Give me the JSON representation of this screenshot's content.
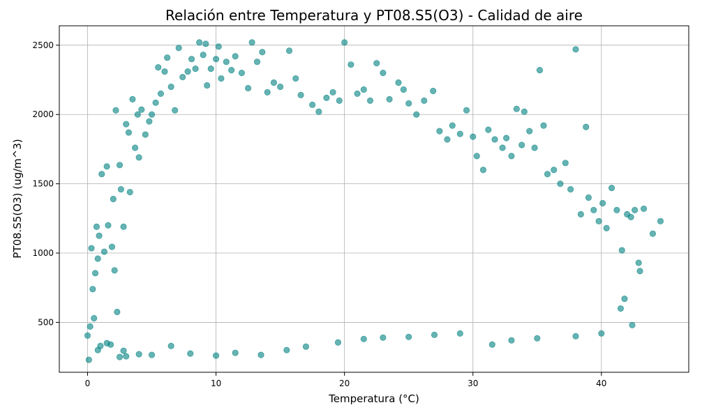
{
  "chart_data": {
    "type": "scatter",
    "title": "Relación entre Temperatura y PT08.S5(O3) - Calidad de aire",
    "xlabel": "Temperatura (°C)",
    "ylabel": "PT08.S5(O3) (ug/m^3)",
    "xlim": [
      -2.2,
      46.8
    ],
    "ylim": [
      140,
      2640
    ],
    "xticks": [
      0,
      10,
      20,
      30,
      40
    ],
    "yticks": [
      500,
      1000,
      1500,
      2000,
      2500
    ],
    "grid": true,
    "marker_color": "#008080",
    "marker_alpha": 0.6,
    "series": [
      {
        "points": [
          [
            0.0,
            405
          ],
          [
            0.1,
            230
          ],
          [
            0.2,
            470
          ],
          [
            0.3,
            1035
          ],
          [
            0.4,
            740
          ],
          [
            0.5,
            530
          ],
          [
            0.6,
            855
          ],
          [
            0.7,
            1190
          ],
          [
            0.8,
            960
          ],
          [
            0.9,
            1125
          ],
          [
            1.0,
            330
          ],
          [
            1.1,
            1570
          ],
          [
            1.3,
            1010
          ],
          [
            1.5,
            1625
          ],
          [
            1.6,
            1200
          ],
          [
            1.8,
            340
          ],
          [
            1.9,
            1045
          ],
          [
            2.0,
            1390
          ],
          [
            2.1,
            875
          ],
          [
            2.2,
            2030
          ],
          [
            2.3,
            575
          ],
          [
            2.5,
            1635
          ],
          [
            2.6,
            1460
          ],
          [
            2.8,
            1190
          ],
          [
            2.8,
            295
          ],
          [
            3.0,
            1930
          ],
          [
            3.2,
            1870
          ],
          [
            3.3,
            1440
          ],
          [
            3.5,
            2110
          ],
          [
            3.7,
            1760
          ],
          [
            3.9,
            2000
          ],
          [
            4.0,
            1690
          ],
          [
            4.2,
            2035
          ],
          [
            4.5,
            1855
          ],
          [
            4.8,
            1950
          ],
          [
            5.0,
            2000
          ],
          [
            5.3,
            2085
          ],
          [
            5.5,
            2340
          ],
          [
            5.7,
            2150
          ],
          [
            6.0,
            2310
          ],
          [
            6.2,
            2410
          ],
          [
            6.5,
            2200
          ],
          [
            6.8,
            2030
          ],
          [
            7.1,
            2480
          ],
          [
            7.4,
            2270
          ],
          [
            7.8,
            2310
          ],
          [
            8.1,
            2400
          ],
          [
            8.4,
            2330
          ],
          [
            8.7,
            2520
          ],
          [
            9.0,
            2430
          ],
          [
            9.2,
            2510
          ],
          [
            9.3,
            2210
          ],
          [
            9.6,
            2330
          ],
          [
            10.0,
            2400
          ],
          [
            10.2,
            2490
          ],
          [
            10.4,
            2260
          ],
          [
            10.8,
            2380
          ],
          [
            11.2,
            2320
          ],
          [
            11.5,
            2420
          ],
          [
            12.0,
            2300
          ],
          [
            12.5,
            2190
          ],
          [
            12.8,
            2520
          ],
          [
            13.2,
            2380
          ],
          [
            13.6,
            2450
          ],
          [
            14.0,
            2160
          ],
          [
            14.5,
            2230
          ],
          [
            15.0,
            2200
          ],
          [
            15.7,
            2460
          ],
          [
            16.2,
            2260
          ],
          [
            16.6,
            2140
          ],
          [
            17.5,
            2070
          ],
          [
            18.0,
            2020
          ],
          [
            18.6,
            2120
          ],
          [
            19.1,
            2160
          ],
          [
            19.6,
            2100
          ],
          [
            20.0,
            2520
          ],
          [
            20.5,
            2360
          ],
          [
            21.0,
            2150
          ],
          [
            21.5,
            2180
          ],
          [
            22.0,
            2100
          ],
          [
            22.5,
            2370
          ],
          [
            23.0,
            2300
          ],
          [
            23.5,
            2110
          ],
          [
            24.2,
            2230
          ],
          [
            24.6,
            2180
          ],
          [
            25.0,
            2080
          ],
          [
            25.6,
            2000
          ],
          [
            26.2,
            2100
          ],
          [
            26.9,
            2170
          ],
          [
            27.4,
            1880
          ],
          [
            28.0,
            1820
          ],
          [
            28.4,
            1920
          ],
          [
            29.0,
            1860
          ],
          [
            29.5,
            2030
          ],
          [
            30.0,
            1840
          ],
          [
            30.3,
            1700
          ],
          [
            30.8,
            1600
          ],
          [
            31.2,
            1890
          ],
          [
            31.7,
            1820
          ],
          [
            32.3,
            1760
          ],
          [
            32.6,
            1830
          ],
          [
            33.0,
            1700
          ],
          [
            33.4,
            2040
          ],
          [
            33.8,
            1780
          ],
          [
            34.0,
            2020
          ],
          [
            34.4,
            1880
          ],
          [
            34.8,
            1760
          ],
          [
            35.2,
            2320
          ],
          [
            35.5,
            1920
          ],
          [
            35.8,
            1570
          ],
          [
            36.3,
            1600
          ],
          [
            36.8,
            1500
          ],
          [
            37.2,
            1650
          ],
          [
            37.6,
            1460
          ],
          [
            38.0,
            2470
          ],
          [
            38.4,
            1280
          ],
          [
            38.8,
            1910
          ],
          [
            39.0,
            1400
          ],
          [
            39.4,
            1310
          ],
          [
            39.8,
            1230
          ],
          [
            40.1,
            1360
          ],
          [
            40.4,
            1180
          ],
          [
            40.8,
            1470
          ],
          [
            41.2,
            1310
          ],
          [
            41.6,
            1020
          ],
          [
            42.0,
            1280
          ],
          [
            42.3,
            1260
          ],
          [
            42.6,
            1310
          ],
          [
            42.9,
            930
          ],
          [
            43.3,
            1320
          ],
          [
            44.0,
            1140
          ],
          [
            44.6,
            1230
          ],
          [
            42.4,
            480
          ],
          [
            40.0,
            420
          ],
          [
            38.0,
            400
          ],
          [
            35.0,
            385
          ],
          [
            33.0,
            370
          ],
          [
            31.5,
            340
          ],
          [
            29.0,
            420
          ],
          [
            27.0,
            410
          ],
          [
            25.0,
            395
          ],
          [
            23.0,
            390
          ],
          [
            21.5,
            380
          ],
          [
            19.5,
            355
          ],
          [
            17.0,
            325
          ],
          [
            15.5,
            300
          ],
          [
            13.5,
            265
          ],
          [
            11.5,
            280
          ],
          [
            10.0,
            260
          ],
          [
            8.0,
            275
          ],
          [
            6.5,
            330
          ],
          [
            5.0,
            265
          ],
          [
            4.0,
            270
          ],
          [
            3.0,
            255
          ],
          [
            2.5,
            250
          ],
          [
            1.5,
            350
          ],
          [
            0.8,
            300
          ],
          [
            41.5,
            600
          ],
          [
            43.0,
            870
          ],
          [
            41.8,
            670
          ]
        ]
      }
    ]
  }
}
